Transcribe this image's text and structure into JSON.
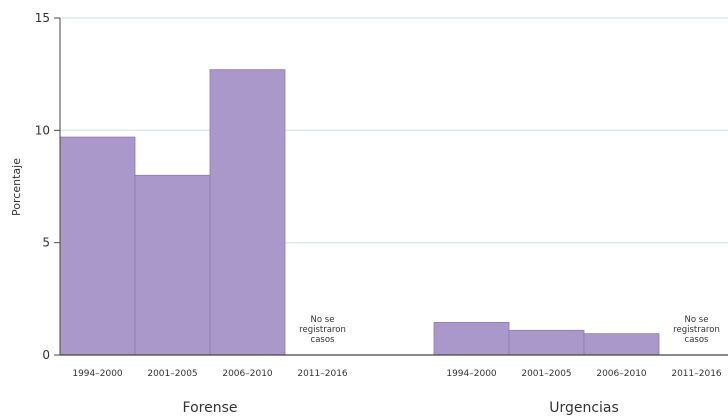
{
  "chart_data": {
    "type": "bar",
    "ylabel": "Porcentaje",
    "ylim": [
      0,
      15
    ],
    "yticks": [
      0,
      5,
      10,
      15
    ],
    "grid": true,
    "groups": [
      {
        "name": "Forense",
        "categories": [
          "1994–2000",
          "2001–2005",
          "2006–2010",
          "2011–2016"
        ],
        "values": [
          9.7,
          8.0,
          12.7,
          0
        ],
        "annotations": [
          null,
          null,
          null,
          [
            "No se",
            "registraron",
            "casos"
          ]
        ]
      },
      {
        "name": "Urgencias",
        "categories": [
          "1994–2000",
          "2001–2005",
          "2006–2010",
          "2011–2016"
        ],
        "values": [
          1.45,
          1.1,
          0.95,
          0
        ],
        "annotations": [
          null,
          null,
          null,
          [
            "No se",
            "registraron",
            "casos"
          ]
        ]
      }
    ],
    "colors": {
      "bar": "#a998c9",
      "bar_stroke": "#8c7bb0",
      "grid": "#d6ebe7",
      "axis": "#444444"
    }
  }
}
